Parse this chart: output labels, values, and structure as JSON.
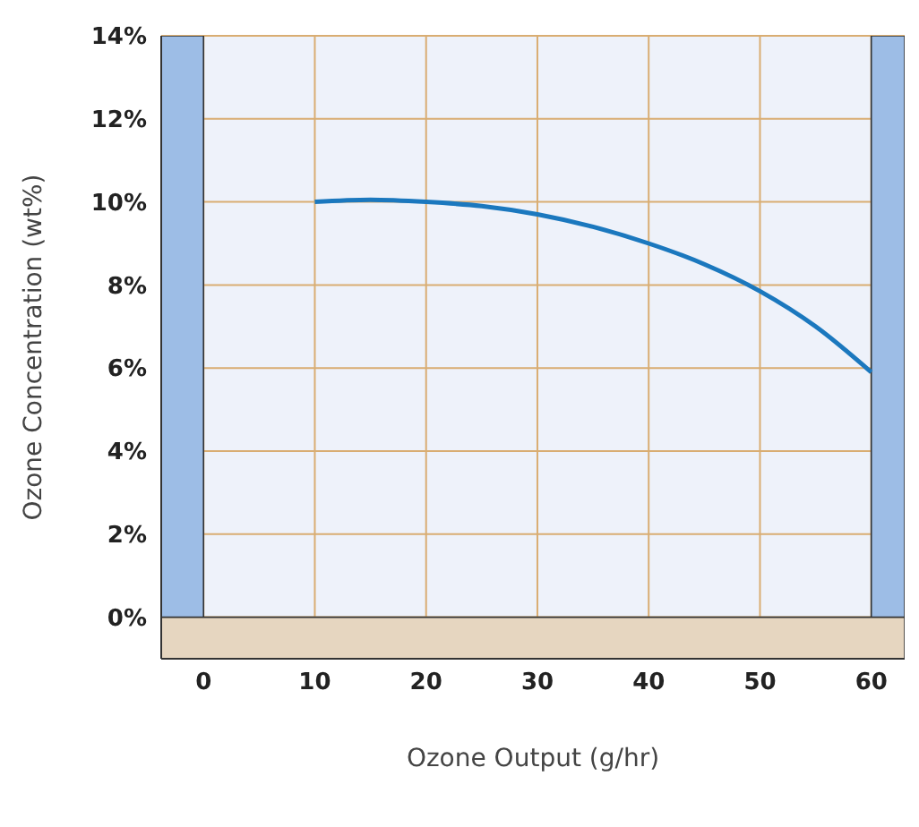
{
  "chart_data": {
    "type": "line",
    "xlabel": "Ozone Output (g/hr)",
    "ylabel": "Ozone Concentration (wt%)",
    "series": [
      {
        "color": "#1b78be",
        "x": [
          10,
          15,
          20,
          25,
          30,
          35,
          40,
          45,
          50,
          55,
          60
        ],
        "values": [
          10,
          10.05,
          10,
          9.9,
          9.7,
          9.4,
          9,
          8.5,
          7.85,
          7,
          5.9
        ]
      }
    ],
    "xlim": [
      -3.8,
      63
    ],
    "xticks": [
      0,
      10,
      20,
      30,
      40,
      50,
      60
    ],
    "ylim": [
      -1,
      14
    ],
    "yticks": [
      {
        "value": 0,
        "label": "0%"
      },
      {
        "value": 2,
        "label": "2%"
      },
      {
        "value": 4,
        "label": "4%"
      },
      {
        "value": 6,
        "label": "6%"
      },
      {
        "value": 8,
        "label": "8%"
      },
      {
        "value": 10,
        "label": "10%"
      },
      {
        "value": 12,
        "label": "12%"
      },
      {
        "value": 14,
        "label": "14%"
      }
    ],
    "bands": [
      {
        "axis": "x",
        "from": -3.8,
        "to": 0,
        "color": "#9dbde6"
      },
      {
        "axis": "x",
        "from": 60,
        "to": 63,
        "color": "#9dbde6"
      },
      {
        "axis": "y",
        "from": -1,
        "to": 0,
        "color": "#e6d6c0"
      }
    ],
    "grid": true,
    "marker": "none",
    "line_style": "solid",
    "legend": false
  }
}
